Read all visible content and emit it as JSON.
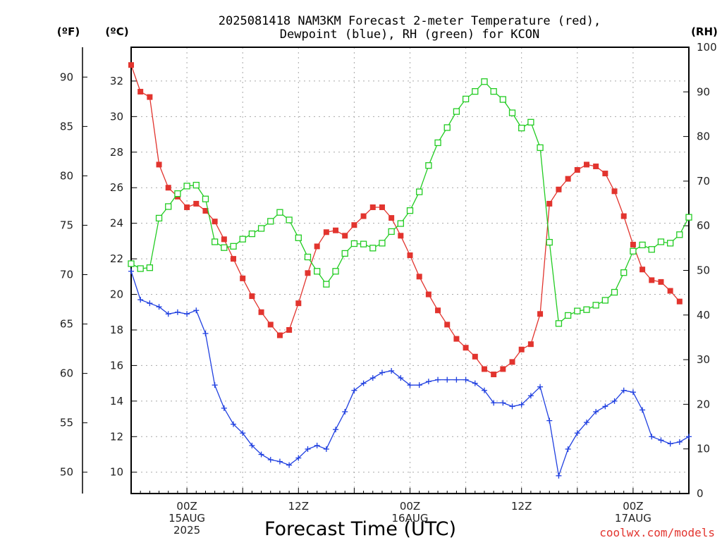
{
  "chart_data": {
    "type": "line",
    "title_lines": [
      "2025081418 NAM3KM Forecast 2-meter Temperature (red),",
      "Dewpoint (blue), RH (green) for KCON"
    ],
    "units": {
      "left_outer": "(ºF)",
      "left_inner": "(ºC)",
      "right": "(RH)"
    },
    "xlabel": "Forecast Time (UTC)",
    "credit": "coolwx.com/models",
    "x_range_hours": [
      -6,
      54
    ],
    "celsius_axis": {
      "range": [
        8.8,
        33.9
      ],
      "ticks": [
        10,
        12,
        14,
        16,
        18,
        20,
        22,
        24,
        26,
        28,
        30,
        32
      ]
    },
    "fahrenheit_axis": {
      "ticks": [
        50,
        55,
        60,
        65,
        70,
        75,
        80,
        85,
        90
      ]
    },
    "rh_axis": {
      "range": [
        0,
        100
      ],
      "ticks": [
        0,
        10,
        20,
        30,
        40,
        50,
        60,
        70,
        80,
        90,
        100
      ]
    },
    "x_ticks": [
      {
        "hour": 0,
        "lines": [
          "00Z",
          "15AUG",
          "2025"
        ]
      },
      {
        "hour": 12,
        "lines": [
          "12Z"
        ]
      },
      {
        "hour": 24,
        "lines": [
          "00Z",
          "16AUG"
        ]
      },
      {
        "hour": 36,
        "lines": [
          "12Z"
        ]
      },
      {
        "hour": 48,
        "lines": [
          "00Z",
          "17AUG"
        ]
      }
    ],
    "grid": true,
    "series": [
      {
        "name": "2-meter Temperature",
        "color": "#e2342e",
        "marker": "filled-square",
        "axis": "celsius",
        "points": [
          [
            -6,
            32.9
          ],
          [
            -5,
            31.4
          ],
          [
            -4,
            31.1
          ],
          [
            -3,
            27.3
          ],
          [
            -2,
            26.0
          ],
          [
            -1,
            25.5
          ],
          [
            0,
            24.9
          ],
          [
            1,
            25.1
          ],
          [
            2,
            24.7
          ],
          [
            3,
            24.1
          ],
          [
            4,
            23.1
          ],
          [
            5,
            22.0
          ],
          [
            6,
            20.9
          ],
          [
            7,
            19.9
          ],
          [
            8,
            19.0
          ],
          [
            9,
            18.3
          ],
          [
            10,
            17.7
          ],
          [
            11,
            18.0
          ],
          [
            12,
            19.5
          ],
          [
            13,
            21.2
          ],
          [
            14,
            22.7
          ],
          [
            15,
            23.5
          ],
          [
            16,
            23.6
          ],
          [
            17,
            23.3
          ],
          [
            18,
            23.9
          ],
          [
            19,
            24.4
          ],
          [
            20,
            24.9
          ],
          [
            21,
            24.9
          ],
          [
            22,
            24.3
          ],
          [
            23,
            23.3
          ],
          [
            24,
            22.2
          ],
          [
            25,
            21.0
          ],
          [
            26,
            20.0
          ],
          [
            27,
            19.1
          ],
          [
            28,
            18.3
          ],
          [
            29,
            17.5
          ],
          [
            30,
            17.0
          ],
          [
            31,
            16.5
          ],
          [
            32,
            15.8
          ],
          [
            33,
            15.5
          ],
          [
            34,
            15.8
          ],
          [
            35,
            16.2
          ],
          [
            36,
            16.9
          ],
          [
            37,
            17.2
          ],
          [
            38,
            18.9
          ],
          [
            39,
            25.1
          ],
          [
            40,
            25.9
          ],
          [
            41,
            26.5
          ],
          [
            42,
            27.0
          ],
          [
            43,
            27.3
          ],
          [
            44,
            27.2
          ],
          [
            45,
            26.8
          ],
          [
            46,
            25.8
          ],
          [
            47,
            24.4
          ],
          [
            48,
            22.8
          ],
          [
            49,
            21.4
          ],
          [
            50,
            20.8
          ],
          [
            51,
            20.7
          ],
          [
            52,
            20.2
          ],
          [
            53,
            19.6
          ]
        ]
      },
      {
        "name": "Dewpoint",
        "color": "#1f3fe0",
        "marker": "plus",
        "axis": "celsius",
        "points": [
          [
            -6,
            21.3
          ],
          [
            -5,
            19.7
          ],
          [
            -4,
            19.5
          ],
          [
            -3,
            19.3
          ],
          [
            -2,
            18.9
          ],
          [
            -1,
            19.0
          ],
          [
            0,
            18.9
          ],
          [
            1,
            19.1
          ],
          [
            2,
            17.8
          ],
          [
            3,
            14.9
          ],
          [
            4,
            13.6
          ],
          [
            5,
            12.7
          ],
          [
            6,
            12.2
          ],
          [
            7,
            11.5
          ],
          [
            8,
            11.0
          ],
          [
            9,
            10.7
          ],
          [
            10,
            10.6
          ],
          [
            11,
            10.4
          ],
          [
            12,
            10.8
          ],
          [
            13,
            11.3
          ],
          [
            14,
            11.5
          ],
          [
            15,
            11.3
          ],
          [
            16,
            12.4
          ],
          [
            17,
            13.4
          ],
          [
            18,
            14.6
          ],
          [
            19,
            15.0
          ],
          [
            20,
            15.3
          ],
          [
            21,
            15.6
          ],
          [
            22,
            15.7
          ],
          [
            23,
            15.3
          ],
          [
            24,
            14.9
          ],
          [
            25,
            14.9
          ],
          [
            26,
            15.1
          ],
          [
            27,
            15.2
          ],
          [
            28,
            15.2
          ],
          [
            29,
            15.2
          ],
          [
            30,
            15.2
          ],
          [
            31,
            15.0
          ],
          [
            32,
            14.6
          ],
          [
            33,
            13.9
          ],
          [
            34,
            13.9
          ],
          [
            35,
            13.7
          ],
          [
            36,
            13.8
          ],
          [
            37,
            14.3
          ],
          [
            38,
            14.8
          ],
          [
            39,
            12.9
          ],
          [
            40,
            9.8
          ],
          [
            41,
            11.3
          ],
          [
            42,
            12.2
          ],
          [
            43,
            12.8
          ],
          [
            44,
            13.4
          ],
          [
            45,
            13.7
          ],
          [
            46,
            14.0
          ],
          [
            47,
            14.6
          ],
          [
            48,
            14.5
          ],
          [
            49,
            13.5
          ],
          [
            50,
            12.0
          ],
          [
            51,
            11.8
          ],
          [
            52,
            11.6
          ],
          [
            53,
            11.7
          ],
          [
            54,
            12.0
          ]
        ]
      },
      {
        "name": "RH",
        "color": "#22cc22",
        "marker": "open-square",
        "axis": "rh",
        "points": [
          [
            -6,
            51.5
          ],
          [
            -5,
            50.4
          ],
          [
            -4,
            50.6
          ],
          [
            -3,
            61.7
          ],
          [
            -2,
            64.3
          ],
          [
            -1,
            67.2
          ],
          [
            0,
            68.9
          ],
          [
            1,
            69.1
          ],
          [
            2,
            66.0
          ],
          [
            3,
            56.4
          ],
          [
            4,
            55.1
          ],
          [
            5,
            55.4
          ],
          [
            6,
            57.0
          ],
          [
            7,
            58.2
          ],
          [
            8,
            59.4
          ],
          [
            9,
            61.0
          ],
          [
            10,
            63.0
          ],
          [
            11,
            61.3
          ],
          [
            12,
            57.3
          ],
          [
            13,
            53.0
          ],
          [
            14,
            49.8
          ],
          [
            15,
            46.9
          ],
          [
            16,
            49.8
          ],
          [
            17,
            53.8
          ],
          [
            18,
            56.0
          ],
          [
            19,
            55.9
          ],
          [
            20,
            55.0
          ],
          [
            21,
            56.1
          ],
          [
            22,
            58.7
          ],
          [
            23,
            60.5
          ],
          [
            24,
            63.4
          ],
          [
            25,
            67.6
          ],
          [
            26,
            73.5
          ],
          [
            27,
            78.6
          ],
          [
            28,
            82.0
          ],
          [
            29,
            85.6
          ],
          [
            30,
            88.4
          ],
          [
            31,
            90.1
          ],
          [
            32,
            92.3
          ],
          [
            33,
            90.1
          ],
          [
            34,
            88.3
          ],
          [
            35,
            85.3
          ],
          [
            36,
            81.9
          ],
          [
            37,
            83.2
          ],
          [
            38,
            77.5
          ],
          [
            39,
            56.3
          ],
          [
            40,
            38.1
          ],
          [
            41,
            39.9
          ],
          [
            42,
            40.9
          ],
          [
            43,
            41.2
          ],
          [
            44,
            42.2
          ],
          [
            45,
            43.3
          ],
          [
            46,
            45.1
          ],
          [
            47,
            49.5
          ],
          [
            48,
            54.3
          ],
          [
            49,
            55.7
          ],
          [
            50,
            54.7
          ],
          [
            51,
            56.4
          ],
          [
            52,
            56.1
          ],
          [
            53,
            58.0
          ],
          [
            54,
            61.9
          ]
        ]
      }
    ]
  }
}
